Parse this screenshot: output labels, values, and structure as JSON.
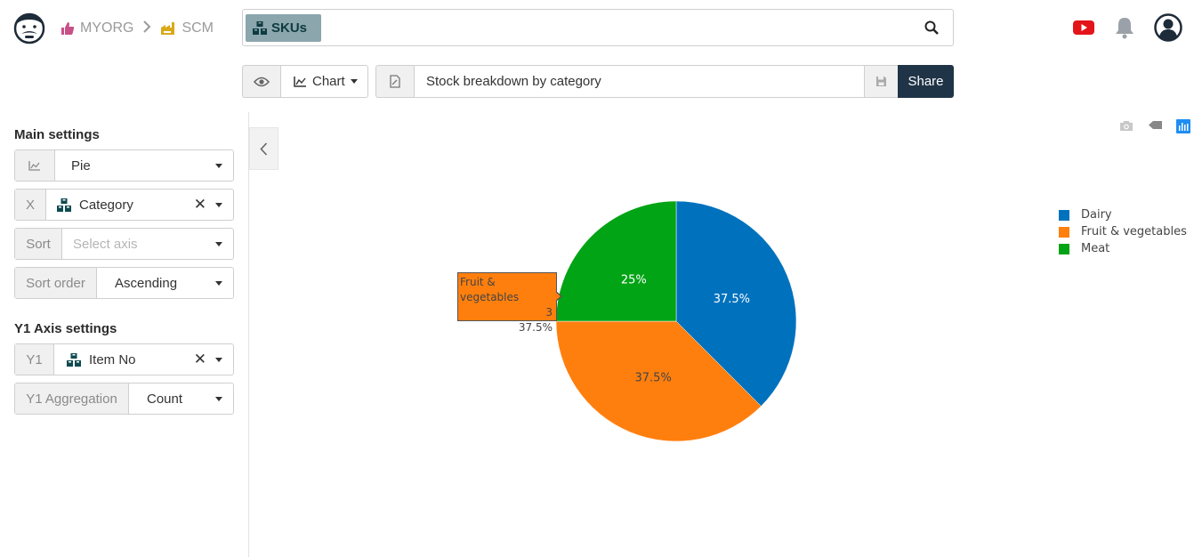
{
  "header": {
    "breadcrumb": [
      {
        "label": "MYORG",
        "icon": "thumbs-up-icon",
        "color": "#c94f86"
      },
      {
        "label": "SCM",
        "icon": "factory-icon",
        "color": "#d9a919"
      }
    ],
    "search": {
      "chip_label": "SKUs",
      "chip_icon": "boxes-icon"
    },
    "icons": [
      "youtube-icon",
      "bell-icon",
      "user-account-icon"
    ]
  },
  "toolbar": {
    "view_icon": "eye-icon",
    "chart_label": "Chart",
    "chart_icon": "area-chart-icon",
    "doc_icon": "document-edit-icon",
    "title": "Stock breakdown by category",
    "save_icon": "save-icon",
    "share_label": "Share"
  },
  "sidebar": {
    "main_title": "Main settings",
    "chart_type": {
      "icon": "area-chart-icon",
      "value": "Pie"
    },
    "x": {
      "label": "X",
      "value": "Category",
      "icon": "boxes-icon"
    },
    "sort": {
      "label": "Sort",
      "placeholder": "Select axis"
    },
    "sort_order": {
      "label": "Sort order",
      "value": "Ascending"
    },
    "y1_title": "Y1 Axis settings",
    "y1": {
      "label": "Y1",
      "value": "Item No",
      "icon": "boxes-icon"
    },
    "y1_agg": {
      "label": "Y1 Aggregation",
      "value": "Count"
    }
  },
  "modebar": [
    "camera-icon",
    "tag-icon",
    "plotly-logo-icon"
  ],
  "chart_data": {
    "type": "pie",
    "categories": [
      "Dairy",
      "Fruit & vegetables",
      "Meat"
    ],
    "values": [
      3,
      3,
      2
    ],
    "percent_labels": [
      "37.5%",
      "37.5%",
      "25%"
    ],
    "colors": [
      "#0072bd",
      "#ff7f0e",
      "#00a414"
    ],
    "legend_position": "top-right",
    "hover": {
      "label": "Fruit & vegetables",
      "value": "3",
      "percent": "37.5%"
    }
  }
}
